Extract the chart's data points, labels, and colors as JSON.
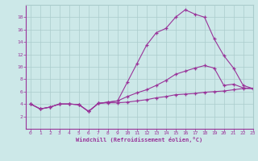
{
  "xlabel": "Windchill (Refroidissement éolien,°C)",
  "background_color": "#cce8e8",
  "line_color": "#993399",
  "grid_color": "#aacccc",
  "x": [
    0,
    1,
    2,
    3,
    4,
    5,
    6,
    7,
    8,
    9,
    10,
    11,
    12,
    13,
    14,
    15,
    16,
    17,
    18,
    19,
    20,
    21,
    22,
    23
  ],
  "line1": [
    4.0,
    3.2,
    3.5,
    4.0,
    4.0,
    3.9,
    2.8,
    4.1,
    4.2,
    4.2,
    4.3,
    4.5,
    4.7,
    5.0,
    5.2,
    5.5,
    5.6,
    5.7,
    5.9,
    6.0,
    6.1,
    6.3,
    6.5,
    6.5
  ],
  "line2": [
    4.0,
    3.2,
    3.5,
    4.0,
    4.0,
    3.9,
    2.8,
    4.1,
    4.3,
    4.5,
    5.2,
    5.8,
    6.3,
    7.0,
    7.8,
    8.8,
    9.3,
    9.8,
    10.2,
    9.8,
    7.0,
    7.2,
    6.6,
    6.5
  ],
  "line3": [
    4.0,
    3.2,
    3.5,
    4.0,
    4.0,
    3.9,
    2.8,
    4.1,
    4.3,
    4.5,
    7.5,
    10.5,
    13.5,
    15.5,
    16.2,
    18.0,
    19.2,
    18.5,
    18.0,
    14.5,
    11.8,
    9.8,
    7.0,
    6.5
  ],
  "ylim": [
    0,
    20
  ],
  "xlim": [
    -0.5,
    23
  ],
  "yticks": [
    2,
    4,
    6,
    8,
    10,
    12,
    14,
    16,
    18
  ],
  "xticks": [
    0,
    1,
    2,
    3,
    4,
    5,
    6,
    7,
    8,
    9,
    10,
    11,
    12,
    13,
    14,
    15,
    16,
    17,
    18,
    19,
    20,
    21,
    22,
    23
  ]
}
